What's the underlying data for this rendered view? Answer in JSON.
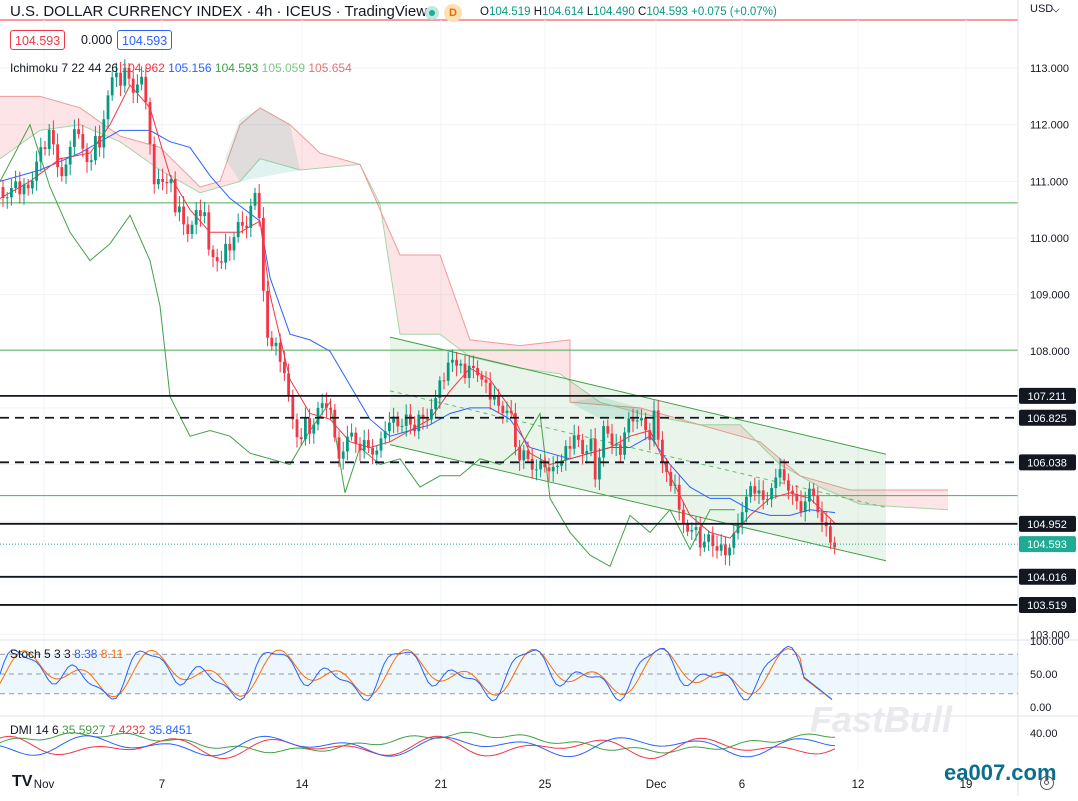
{
  "header": {
    "title": "U.S. DOLLAR CURRENCY INDEX · 4h · ICEUS · TradingView",
    "badge_letter": "D",
    "ohlc": {
      "o_label": "O",
      "o": "104.519",
      "h_label": "H",
      "h": "104.614",
      "l_label": "L",
      "l": "104.490",
      "c_label": "C",
      "c": "104.593",
      "chg": "+0.075 (+0.07%)"
    },
    "price_left": "104.593",
    "price_mid": "0.000",
    "price_right": "104.593"
  },
  "axis": {
    "currency": "USD"
  },
  "indicators": {
    "ichimoku": {
      "name": "Ichimoku",
      "params": "7 22 44 26",
      "v1": "104.962",
      "v2": "105.156",
      "v3": "104.593",
      "v4": "105.059",
      "v5": "105.654"
    },
    "stoch": {
      "name": "Stoch",
      "params": "5 3 3",
      "k": "8.38",
      "d": "8.11"
    },
    "dmi": {
      "name": "DMI",
      "params": "14 6",
      "adx": "35.5927",
      "minus": "7.4232",
      "plus": "35.8451"
    }
  },
  "watermark": {
    "fastbull": "FastBull",
    "ea": "ea007.com",
    "tv": "TV"
  },
  "colors": {
    "up": "#089981",
    "down": "#f23645",
    "kijun": "#2962ff",
    "tenkan": "#f23645",
    "chikou": "#43a047",
    "stoch_k": "#2962ff",
    "stoch_d": "#ff6d00"
  },
  "chart_data": {
    "type": "candlestick",
    "timeframe": "4h",
    "y_range": [
      102.9,
      113.85
    ],
    "x_labels": [
      "Nov",
      "7",
      "14",
      "21",
      "25",
      "Dec",
      "6",
      "12",
      "19"
    ],
    "price_ticks": [
      "113.000",
      "112.000",
      "111.000",
      "110.000",
      "109.000",
      "108.000",
      "107.000",
      "106.000",
      "105.000",
      "104.000",
      "103.000"
    ],
    "tick_values": [
      113,
      112,
      111,
      110,
      109,
      108,
      107,
      106,
      105,
      104,
      103
    ],
    "levels": [
      {
        "value": 107.211,
        "label": "107.211",
        "style": "solid"
      },
      {
        "value": 106.825,
        "label": "106.825",
        "style": "dashed"
      },
      {
        "value": 106.038,
        "label": "106.038",
        "style": "dashed"
      },
      {
        "value": 104.952,
        "label": "104.952",
        "style": "solid"
      },
      {
        "value": 104.016,
        "label": "104.016",
        "style": "solid"
      },
      {
        "value": 103.519,
        "label": "103.519",
        "style": "solid"
      }
    ],
    "last_price": {
      "value": 104.593,
      "label": "104.593"
    },
    "close_path": [
      [
        0,
        110.9
      ],
      [
        5,
        110.7
      ],
      [
        10,
        110.8
      ],
      [
        15,
        110.95
      ],
      [
        20,
        110.7
      ],
      [
        25,
        111.0
      ],
      [
        30,
        110.9
      ],
      [
        35,
        111.3
      ],
      [
        40,
        111.6
      ],
      [
        45,
        111.5
      ],
      [
        50,
        111.9
      ],
      [
        55,
        111.5
      ],
      [
        60,
        111.1
      ],
      [
        65,
        111.3
      ],
      [
        70,
        111.6
      ],
      [
        75,
        111.9
      ],
      [
        80,
        111.7
      ],
      [
        85,
        111.4
      ],
      [
        90,
        111.3
      ],
      [
        95,
        111.9
      ],
      [
        100,
        111.6
      ],
      [
        105,
        112.2
      ],
      [
        110,
        112.6
      ],
      [
        115,
        113.0
      ],
      [
        120,
        112.7
      ],
      [
        125,
        113.1
      ],
      [
        130,
        112.8
      ],
      [
        135,
        112.4
      ],
      [
        140,
        112.9
      ],
      [
        145,
        112.5
      ],
      [
        150,
        111.7
      ],
      [
        155,
        110.9
      ],
      [
        160,
        111.2
      ],
      [
        165,
        110.8
      ],
      [
        170,
        111.1
      ],
      [
        175,
        110.4
      ],
      [
        180,
        110.6
      ],
      [
        185,
        110.2
      ],
      [
        190,
        110.1
      ],
      [
        195,
        110.5
      ],
      [
        200,
        110.3
      ],
      [
        205,
        110.4
      ],
      [
        210,
        109.6
      ],
      [
        215,
        109.8
      ],
      [
        220,
        109.5
      ],
      [
        225,
        109.9
      ],
      [
        230,
        109.7
      ],
      [
        235,
        110.0
      ],
      [
        240,
        110.4
      ],
      [
        245,
        110.1
      ],
      [
        250,
        110.6
      ],
      [
        255,
        110.8
      ],
      [
        260,
        110.2
      ],
      [
        262,
        109.5
      ],
      [
        265,
        108.4
      ],
      [
        270,
        108.0
      ],
      [
        275,
        108.3
      ],
      [
        280,
        107.9
      ],
      [
        285,
        107.6
      ],
      [
        290,
        107.0
      ],
      [
        295,
        106.5
      ],
      [
        300,
        106.3
      ],
      [
        305,
        106.9
      ],
      [
        310,
        106.6
      ],
      [
        315,
        106.8
      ],
      [
        320,
        107.1
      ],
      [
        325,
        106.9
      ],
      [
        330,
        107.0
      ],
      [
        335,
        106.5
      ],
      [
        340,
        106.1
      ],
      [
        345,
        106.4
      ],
      [
        350,
        106.6
      ],
      [
        355,
        106.3
      ],
      [
        360,
        106.2
      ],
      [
        365,
        106.5
      ],
      [
        370,
        106.3
      ],
      [
        375,
        106.2
      ],
      [
        380,
        106.4
      ],
      [
        385,
        106.5
      ],
      [
        390,
        106.7
      ],
      [
        395,
        106.9
      ],
      [
        400,
        106.6
      ],
      [
        405,
        107.0
      ],
      [
        410,
        106.7
      ],
      [
        415,
        106.5
      ],
      [
        420,
        106.9
      ],
      [
        425,
        106.7
      ],
      [
        430,
        107.0
      ],
      [
        435,
        107.2
      ],
      [
        440,
        107.5
      ],
      [
        445,
        107.4
      ],
      [
        450,
        107.9
      ],
      [
        455,
        107.7
      ],
      [
        460,
        107.9
      ],
      [
        465,
        107.6
      ],
      [
        470,
        107.8
      ],
      [
        475,
        107.6
      ],
      [
        480,
        107.4
      ],
      [
        485,
        107.5
      ],
      [
        490,
        107.2
      ],
      [
        495,
        107.3
      ],
      [
        500,
        107.0
      ],
      [
        505,
        106.8
      ],
      [
        510,
        107.0
      ],
      [
        515,
        106.3
      ],
      [
        520,
        106.1
      ],
      [
        525,
        106.4
      ],
      [
        530,
        106.0
      ],
      [
        535,
        105.8
      ],
      [
        540,
        106.0
      ],
      [
        545,
        105.9
      ],
      [
        550,
        105.9
      ],
      [
        555,
        106.1
      ],
      [
        560,
        106.0
      ],
      [
        565,
        106.3
      ],
      [
        570,
        106.2
      ],
      [
        575,
        106.5
      ],
      [
        580,
        106.4
      ],
      [
        585,
        106.1
      ],
      [
        590,
        106.7
      ],
      [
        595,
        105.7
      ],
      [
        600,
        106.1
      ],
      [
        605,
        106.8
      ],
      [
        610,
        106.3
      ],
      [
        615,
        106.5
      ],
      [
        620,
        106.2
      ],
      [
        625,
        106.6
      ],
      [
        630,
        106.8
      ],
      [
        635,
        106.6
      ],
      [
        640,
        106.9
      ],
      [
        645,
        106.7
      ],
      [
        650,
        106.5
      ],
      [
        655,
        107.1
      ],
      [
        660,
        106.0
      ],
      [
        665,
        105.9
      ],
      [
        670,
        105.6
      ],
      [
        675,
        105.7
      ],
      [
        680,
        105.2
      ],
      [
        685,
        104.9
      ],
      [
        690,
        104.7
      ],
      [
        695,
        104.9
      ],
      [
        700,
        104.5
      ],
      [
        705,
        104.7
      ],
      [
        710,
        104.9
      ],
      [
        715,
        104.4
      ],
      [
        720,
        104.6
      ],
      [
        725,
        104.3
      ],
      [
        730,
        104.5
      ],
      [
        735,
        104.9
      ],
      [
        740,
        105.1
      ],
      [
        745,
        105.4
      ],
      [
        750,
        105.6
      ],
      [
        755,
        105.4
      ],
      [
        760,
        105.5
      ],
      [
        765,
        105.3
      ],
      [
        770,
        105.6
      ],
      [
        775,
        105.8
      ],
      [
        780,
        105.9
      ],
      [
        785,
        105.6
      ],
      [
        790,
        105.4
      ],
      [
        795,
        105.5
      ],
      [
        800,
        105.2
      ],
      [
        805,
        105.4
      ],
      [
        810,
        105.6
      ],
      [
        815,
        105.3
      ],
      [
        820,
        104.9
      ],
      [
        825,
        105.0
      ],
      [
        830,
        104.7
      ],
      [
        835,
        104.6
      ]
    ],
    "kijun_path": [
      [
        0,
        111.0
      ],
      [
        40,
        111.2
      ],
      [
        80,
        111.5
      ],
      [
        110,
        111.8
      ],
      [
        120,
        111.9
      ],
      [
        150,
        111.9
      ],
      [
        170,
        111.7
      ],
      [
        190,
        111.6
      ],
      [
        210,
        111.1
      ],
      [
        230,
        110.7
      ],
      [
        260,
        110.3
      ],
      [
        270,
        109.3
      ],
      [
        290,
        108.3
      ],
      [
        310,
        108.2
      ],
      [
        330,
        108.0
      ],
      [
        350,
        107.4
      ],
      [
        370,
        106.8
      ],
      [
        390,
        106.5
      ],
      [
        410,
        106.6
      ],
      [
        430,
        106.7
      ],
      [
        450,
        106.9
      ],
      [
        470,
        107.0
      ],
      [
        490,
        107.0
      ],
      [
        510,
        106.8
      ],
      [
        530,
        106.3
      ],
      [
        550,
        106.2
      ],
      [
        570,
        106.1
      ],
      [
        590,
        106.2
      ],
      [
        610,
        106.3
      ],
      [
        630,
        106.3
      ],
      [
        650,
        106.5
      ],
      [
        670,
        106.0
      ],
      [
        690,
        105.6
      ],
      [
        710,
        105.4
      ],
      [
        730,
        105.4
      ],
      [
        750,
        105.2
      ],
      [
        770,
        105.1
      ],
      [
        790,
        105.1
      ],
      [
        810,
        105.2
      ],
      [
        835,
        105.15
      ]
    ],
    "tenkan_path": [
      [
        0,
        110.7
      ],
      [
        30,
        111.0
      ],
      [
        60,
        111.4
      ],
      [
        90,
        111.5
      ],
      [
        110,
        112.0
      ],
      [
        130,
        112.7
      ],
      [
        150,
        112.3
      ],
      [
        170,
        111.1
      ],
      [
        190,
        110.5
      ],
      [
        210,
        110.1
      ],
      [
        240,
        110.1
      ],
      [
        260,
        110.3
      ],
      [
        270,
        109.0
      ],
      [
        290,
        107.5
      ],
      [
        310,
        106.9
      ],
      [
        330,
        106.8
      ],
      [
        350,
        106.4
      ],
      [
        370,
        106.3
      ],
      [
        390,
        106.4
      ],
      [
        410,
        106.6
      ],
      [
        430,
        106.8
      ],
      [
        450,
        107.3
      ],
      [
        470,
        107.7
      ],
      [
        490,
        107.5
      ],
      [
        510,
        107.0
      ],
      [
        530,
        106.2
      ],
      [
        550,
        106.0
      ],
      [
        570,
        106.1
      ],
      [
        590,
        106.2
      ],
      [
        610,
        106.3
      ],
      [
        630,
        106.5
      ],
      [
        650,
        106.6
      ],
      [
        670,
        105.8
      ],
      [
        690,
        105.1
      ],
      [
        710,
        104.8
      ],
      [
        730,
        104.7
      ],
      [
        750,
        105.1
      ],
      [
        770,
        105.4
      ],
      [
        790,
        105.5
      ],
      [
        810,
        105.4
      ],
      [
        835,
        104.96
      ]
    ],
    "chikou_path": [
      [
        0,
        111.0
      ],
      [
        30,
        112.0
      ],
      [
        50,
        110.9
      ],
      [
        70,
        110.1
      ],
      [
        90,
        109.6
      ],
      [
        110,
        109.9
      ],
      [
        130,
        110.4
      ],
      [
        150,
        109.6
      ],
      [
        160,
        108.8
      ],
      [
        170,
        107.2
      ],
      [
        190,
        106.5
      ],
      [
        210,
        106.6
      ],
      [
        230,
        106.5
      ],
      [
        250,
        106.2
      ],
      [
        270,
        106.1
      ],
      [
        290,
        106.0
      ],
      [
        310,
        106.6
      ],
      [
        330,
        107.1
      ],
      [
        345,
        105.5
      ],
      [
        360,
        106.3
      ],
      [
        380,
        106.0
      ],
      [
        400,
        106.1
      ],
      [
        420,
        105.6
      ],
      [
        440,
        105.8
      ],
      [
        460,
        105.8
      ],
      [
        480,
        106.1
      ],
      [
        500,
        106.0
      ],
      [
        520,
        106.3
      ],
      [
        540,
        106.9
      ],
      [
        550,
        105.4
      ],
      [
        570,
        104.8
      ],
      [
        590,
        104.4
      ],
      [
        610,
        104.2
      ],
      [
        630,
        105.1
      ],
      [
        650,
        104.8
      ],
      [
        670,
        105.2
      ],
      [
        690,
        104.5
      ],
      [
        710,
        105.2
      ],
      [
        735,
        105.2
      ]
    ],
    "cloud_path_a": [
      [
        0,
        111.4
      ],
      [
        40,
        111.9
      ],
      [
        80,
        112.0
      ],
      [
        120,
        111.7
      ],
      [
        160,
        111.2
      ],
      [
        200,
        110.8
      ],
      [
        240,
        111.0
      ],
      [
        260,
        111.4
      ],
      [
        300,
        111.2
      ],
      [
        360,
        111.3
      ],
      [
        380,
        110.6
      ],
      [
        400,
        108.3
      ],
      [
        440,
        108.3
      ],
      [
        470,
        107.9
      ],
      [
        520,
        107.7
      ],
      [
        560,
        107.6
      ],
      [
        600,
        107.1
      ],
      [
        640,
        106.9
      ],
      [
        700,
        106.7
      ],
      [
        740,
        106.7
      ],
      [
        780,
        106.0
      ],
      [
        820,
        105.6
      ],
      [
        860,
        105.3
      ],
      [
        900,
        105.25
      ],
      [
        948,
        105.2
      ]
    ],
    "cloud_path_b": [
      [
        0,
        112.5
      ],
      [
        40,
        112.5
      ],
      [
        80,
        112.3
      ],
      [
        120,
        111.8
      ],
      [
        160,
        111.6
      ],
      [
        200,
        110.9
      ],
      [
        220,
        111.0
      ],
      [
        240,
        112.0
      ],
      [
        260,
        112.3
      ],
      [
        290,
        112.0
      ],
      [
        320,
        111.5
      ],
      [
        360,
        111.3
      ],
      [
        380,
        110.5
      ],
      [
        400,
        109.7
      ],
      [
        440,
        109.7
      ],
      [
        470,
        108.2
      ],
      [
        520,
        108.1
      ],
      [
        570,
        108.2
      ],
      [
        570,
        107.1
      ],
      [
        640,
        107.0
      ],
      [
        700,
        106.7
      ],
      [
        760,
        106.4
      ],
      [
        800,
        105.8
      ],
      [
        850,
        105.55
      ],
      [
        948,
        105.55
      ]
    ],
    "channel": {
      "upper": [
        [
          390,
          108.25
        ],
        [
          886,
          106.18
        ]
      ],
      "lower": [
        [
          390,
          106.35
        ],
        [
          886,
          104.3
        ]
      ]
    },
    "hlines_green": [
      110.62,
      108.02,
      105.45
    ]
  }
}
